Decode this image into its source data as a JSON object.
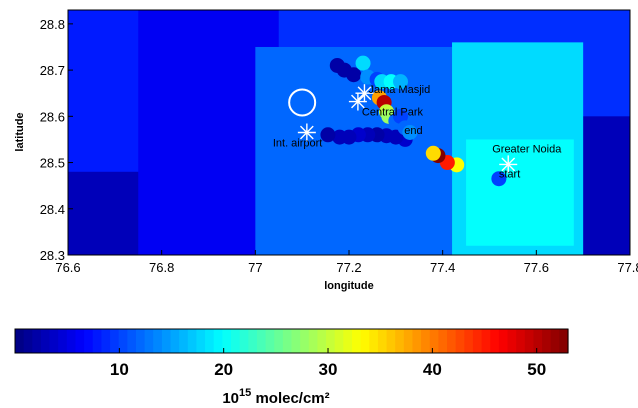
{
  "chart_data": {
    "type": "scatter",
    "xlabel": "longitude",
    "ylabel": "latitude",
    "xlim": [
      76.6,
      77.8
    ],
    "ylim": [
      28.3,
      28.83
    ],
    "x_ticks": [
      "76.6",
      "76.8",
      "77",
      "77.2",
      "77.4",
      "77.6",
      "77.8"
    ],
    "x_tick_values": [
      76.6,
      76.8,
      77.0,
      77.2,
      77.4,
      77.6,
      77.8
    ],
    "y_ticks": [
      "28.3",
      "28.4",
      "28.5",
      "28.6",
      "28.7",
      "28.8"
    ],
    "y_tick_values": [
      28.3,
      28.4,
      28.5,
      28.6,
      28.7,
      28.8
    ],
    "colorbar": {
      "label_base": "10",
      "label_exp": "15",
      "label_rest": " molec/cm²",
      "range": [
        0,
        53
      ],
      "ticks": [
        "10",
        "20",
        "30",
        "40",
        "50"
      ],
      "tick_values": [
        10,
        20,
        30,
        40,
        50
      ]
    },
    "background_cells": [
      {
        "x0": 76.6,
        "x1": 77.8,
        "y0": 28.3,
        "y1": 28.83,
        "value": 3
      },
      {
        "x0": 76.6,
        "x1": 77.15,
        "y0": 28.48,
        "y1": 28.83,
        "value": 8
      },
      {
        "x0": 76.75,
        "x1": 77.35,
        "y0": 28.3,
        "y1": 28.83,
        "value": 6
      },
      {
        "x0": 77.05,
        "x1": 77.8,
        "y0": 28.6,
        "y1": 28.83,
        "value": 9
      },
      {
        "x0": 77.0,
        "x1": 77.42,
        "y0": 28.3,
        "y1": 28.75,
        "value": 12
      },
      {
        "x0": 77.42,
        "x1": 77.7,
        "y0": 28.3,
        "y1": 28.76,
        "value": 18
      },
      {
        "x0": 77.45,
        "x1": 77.68,
        "y0": 28.32,
        "y1": 28.55,
        "value": 20
      }
    ],
    "landmarks": [
      {
        "name": "Jama Masjid",
        "lon": 77.233,
        "lat": 28.65
      },
      {
        "name": "Central Park",
        "lon": 77.219,
        "lat": 28.632
      },
      {
        "name": "Int. airport",
        "lon": 77.11,
        "lat": 28.565
      },
      {
        "name": "Greater Noida",
        "lon": 77.54,
        "lat": 28.496
      }
    ],
    "point_labels": [
      {
        "text": "end",
        "lon": 77.318,
        "lat": 28.562
      },
      {
        "text": "start",
        "lon": 77.52,
        "lat": 28.468
      }
    ],
    "open_circle": {
      "lon": 77.1,
      "lat": 28.63
    },
    "points": [
      {
        "lon": 77.52,
        "lat": 28.465,
        "value": 10
      },
      {
        "lon": 77.43,
        "lat": 28.495,
        "value": 33
      },
      {
        "lon": 77.41,
        "lat": 28.5,
        "value": 45
      },
      {
        "lon": 77.39,
        "lat": 28.515,
        "value": 53
      },
      {
        "lon": 77.38,
        "lat": 28.52,
        "value": 35
      },
      {
        "lon": 77.32,
        "lat": 28.55,
        "value": 4
      },
      {
        "lon": 77.3,
        "lat": 28.555,
        "value": 3
      },
      {
        "lon": 77.28,
        "lat": 28.558,
        "value": 3
      },
      {
        "lon": 77.26,
        "lat": 28.56,
        "value": 2
      },
      {
        "lon": 77.24,
        "lat": 28.56,
        "value": 3
      },
      {
        "lon": 77.22,
        "lat": 28.56,
        "value": 4
      },
      {
        "lon": 77.2,
        "lat": 28.555,
        "value": 3
      },
      {
        "lon": 77.18,
        "lat": 28.555,
        "value": 3
      },
      {
        "lon": 77.155,
        "lat": 28.56,
        "value": 2
      },
      {
        "lon": 77.21,
        "lat": 28.69,
        "value": 2
      },
      {
        "lon": 77.19,
        "lat": 28.7,
        "value": 2
      },
      {
        "lon": 77.175,
        "lat": 28.71,
        "value": 2
      },
      {
        "lon": 77.23,
        "lat": 28.715,
        "value": 18
      },
      {
        "lon": 77.24,
        "lat": 28.685,
        "value": 14
      },
      {
        "lon": 77.26,
        "lat": 28.68,
        "value": 10
      },
      {
        "lon": 77.27,
        "lat": 28.675,
        "value": 18
      },
      {
        "lon": 77.29,
        "lat": 28.675,
        "value": 20
      },
      {
        "lon": 77.31,
        "lat": 28.675,
        "value": 16
      },
      {
        "lon": 77.265,
        "lat": 28.64,
        "value": 38
      },
      {
        "lon": 77.275,
        "lat": 28.63,
        "value": 50
      },
      {
        "lon": 77.28,
        "lat": 28.61,
        "value": 30
      },
      {
        "lon": 77.285,
        "lat": 28.6,
        "value": 28
      },
      {
        "lon": 77.3,
        "lat": 28.59,
        "value": 12
      },
      {
        "lon": 77.31,
        "lat": 28.6,
        "value": 10
      },
      {
        "lon": 77.32,
        "lat": 28.575,
        "value": 12
      },
      {
        "lon": 77.33,
        "lat": 28.565,
        "value": 14
      }
    ]
  }
}
